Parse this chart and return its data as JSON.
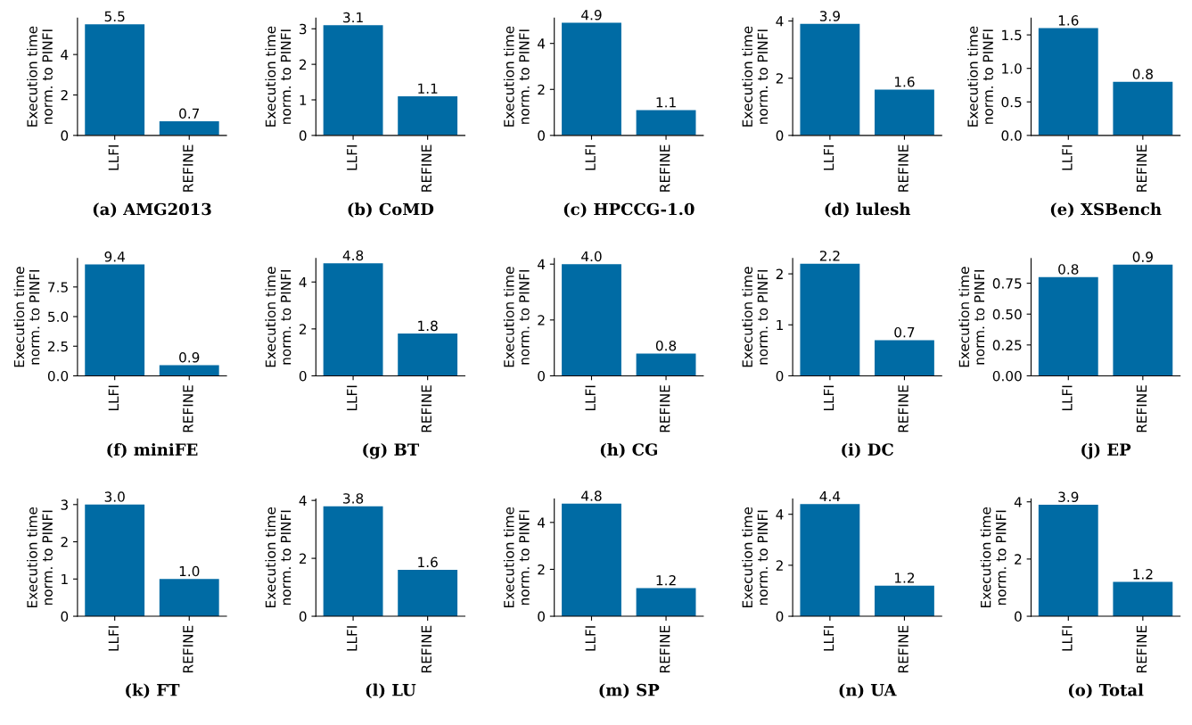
{
  "chart_data": [
    {
      "type": "bar",
      "xlabel": "(a) AMG2013",
      "ylabel": "Execution time\nnorm. to PINFI",
      "categories": [
        "LLFI",
        "REFINE"
      ],
      "values": [
        5.5,
        0.7
      ],
      "color": "#006ba4",
      "ylim": [
        0,
        5.8
      ],
      "yticks": [
        0,
        2,
        4
      ],
      "data_labels": true
    },
    {
      "type": "bar",
      "xlabel": "(b) CoMD",
      "ylabel": "Execution time\nnorm. to PINFI",
      "categories": [
        "LLFI",
        "REFINE"
      ],
      "values": [
        3.1,
        1.1
      ],
      "color": "#006ba4",
      "ylim": [
        0,
        3.3
      ],
      "yticks": [
        0,
        1,
        2,
        3
      ],
      "data_labels": true
    },
    {
      "type": "bar",
      "xlabel": "(c) HPCCG-1.0",
      "ylabel": "Execution time\nnorm. to PINFI",
      "categories": [
        "LLFI",
        "REFINE"
      ],
      "values": [
        4.9,
        1.1
      ],
      "color": "#006ba4",
      "ylim": [
        0,
        5.1
      ],
      "yticks": [
        0,
        2,
        4
      ],
      "data_labels": true
    },
    {
      "type": "bar",
      "xlabel": "(d) lulesh",
      "ylabel": "Execution time\nnorm. to PINFI",
      "categories": [
        "LLFI",
        "REFINE"
      ],
      "values": [
        3.9,
        1.6
      ],
      "color": "#006ba4",
      "ylim": [
        0,
        4.1
      ],
      "yticks": [
        0,
        2,
        4
      ],
      "data_labels": true
    },
    {
      "type": "bar",
      "xlabel": "(e) XSBench",
      "ylabel": "Execution time\nnorm. to PINFI",
      "categories": [
        "LLFI",
        "REFINE"
      ],
      "values": [
        1.6,
        0.8
      ],
      "color": "#006ba4",
      "ylim": [
        0,
        1.75
      ],
      "yticks": [
        {
          "value": 0,
          "label": "0.0"
        },
        {
          "value": 0.5,
          "label": "0.5"
        },
        {
          "value": 1,
          "label": "1.0"
        },
        {
          "value": 1.5,
          "label": "1.5"
        }
      ],
      "data_labels": true
    },
    {
      "type": "bar",
      "xlabel": "(f) miniFE",
      "ylabel": "Execution time\nnorm. to PINFI",
      "categories": [
        "LLFI",
        "REFINE"
      ],
      "values": [
        9.4,
        0.9
      ],
      "color": "#006ba4",
      "ylim": [
        0,
        9.9
      ],
      "yticks": [
        {
          "value": 0,
          "label": "0.0"
        },
        {
          "value": 2.5,
          "label": "2.5"
        },
        {
          "value": 5,
          "label": "5.0"
        },
        {
          "value": 7.5,
          "label": "7.5"
        }
      ],
      "data_labels": true
    },
    {
      "type": "bar",
      "xlabel": "(g) BT",
      "ylabel": "Execution time\nnorm. to PINFI",
      "categories": [
        "LLFI",
        "REFINE"
      ],
      "values": [
        4.8,
        1.8
      ],
      "color": "#006ba4",
      "ylim": [
        0,
        5.0
      ],
      "yticks": [
        0,
        2,
        4
      ],
      "data_labels": true
    },
    {
      "type": "bar",
      "xlabel": "(h) CG",
      "ylabel": "Execution time\nnorm. to PINFI",
      "categories": [
        "LLFI",
        "REFINE"
      ],
      "values": [
        4.0,
        0.8
      ],
      "value_labels": [
        "4.0",
        "0.8"
      ],
      "color": "#006ba4",
      "ylim": [
        0,
        4.2
      ],
      "yticks": [
        0,
        2,
        4
      ]
    },
    {
      "type": "bar",
      "xlabel": "(i) DC",
      "ylabel": "Execution time\nnorm. to PINFI",
      "categories": [
        "LLFI",
        "REFINE"
      ],
      "values": [
        2.2,
        0.7
      ],
      "color": "#006ba4",
      "ylim": [
        0,
        2.3
      ],
      "yticks": [
        0,
        1,
        2
      ],
      "data_labels": true
    },
    {
      "type": "bar",
      "xlabel": "(j) EP",
      "ylabel": "Execution time\nnorm. to PINFI",
      "categories": [
        "LLFI",
        "REFINE"
      ],
      "values": [
        0.8,
        0.9
      ],
      "color": "#006ba4",
      "ylim": [
        0,
        0.95
      ],
      "yticks": [
        {
          "value": 0,
          "label": "0.00"
        },
        {
          "value": 0.25,
          "label": "0.25"
        },
        {
          "value": 0.5,
          "label": "0.50"
        },
        {
          "value": 0.75,
          "label": "0.75"
        }
      ],
      "data_labels": true
    },
    {
      "type": "bar",
      "xlabel": "(k) FT",
      "ylabel": "Execution time\nnorm. to PINFI",
      "categories": [
        "LLFI",
        "REFINE"
      ],
      "values": [
        3.0,
        1.0
      ],
      "value_labels": [
        "3.0",
        "1.0"
      ],
      "color": "#006ba4",
      "ylim": [
        0,
        3.15
      ],
      "yticks": [
        0,
        1,
        2,
        3
      ]
    },
    {
      "type": "bar",
      "xlabel": "(l) LU",
      "ylabel": "Execution time\nnorm. to PINFI",
      "categories": [
        "LLFI",
        "REFINE"
      ],
      "values": [
        3.8,
        1.6
      ],
      "color": "#006ba4",
      "ylim": [
        0,
        4.05
      ],
      "yticks": [
        0,
        2,
        4
      ],
      "data_labels": true
    },
    {
      "type": "bar",
      "xlabel": "(m) SP",
      "ylabel": "Execution time\nnorm. to PINFI",
      "categories": [
        "LLFI",
        "REFINE"
      ],
      "values": [
        4.8,
        1.2
      ],
      "color": "#006ba4",
      "ylim": [
        0,
        5.0
      ],
      "yticks": [
        0,
        2,
        4
      ],
      "data_labels": true
    },
    {
      "type": "bar",
      "xlabel": "(n) UA",
      "ylabel": "Execution time\nnorm. to PINFI",
      "categories": [
        "LLFI",
        "REFINE"
      ],
      "values": [
        4.4,
        1.2
      ],
      "color": "#006ba4",
      "ylim": [
        0,
        4.6
      ],
      "yticks": [
        0,
        2,
        4
      ],
      "data_labels": true
    },
    {
      "type": "bar",
      "xlabel": "(o) Total",
      "ylabel": "Execution time\nnorm. to PINFI",
      "categories": [
        "LLFI",
        "REFINE"
      ],
      "values": [
        3.9,
        1.2
      ],
      "color": "#006ba4",
      "ylim": [
        0,
        4.1
      ],
      "yticks": [
        0,
        2,
        4
      ],
      "data_labels": true
    }
  ]
}
